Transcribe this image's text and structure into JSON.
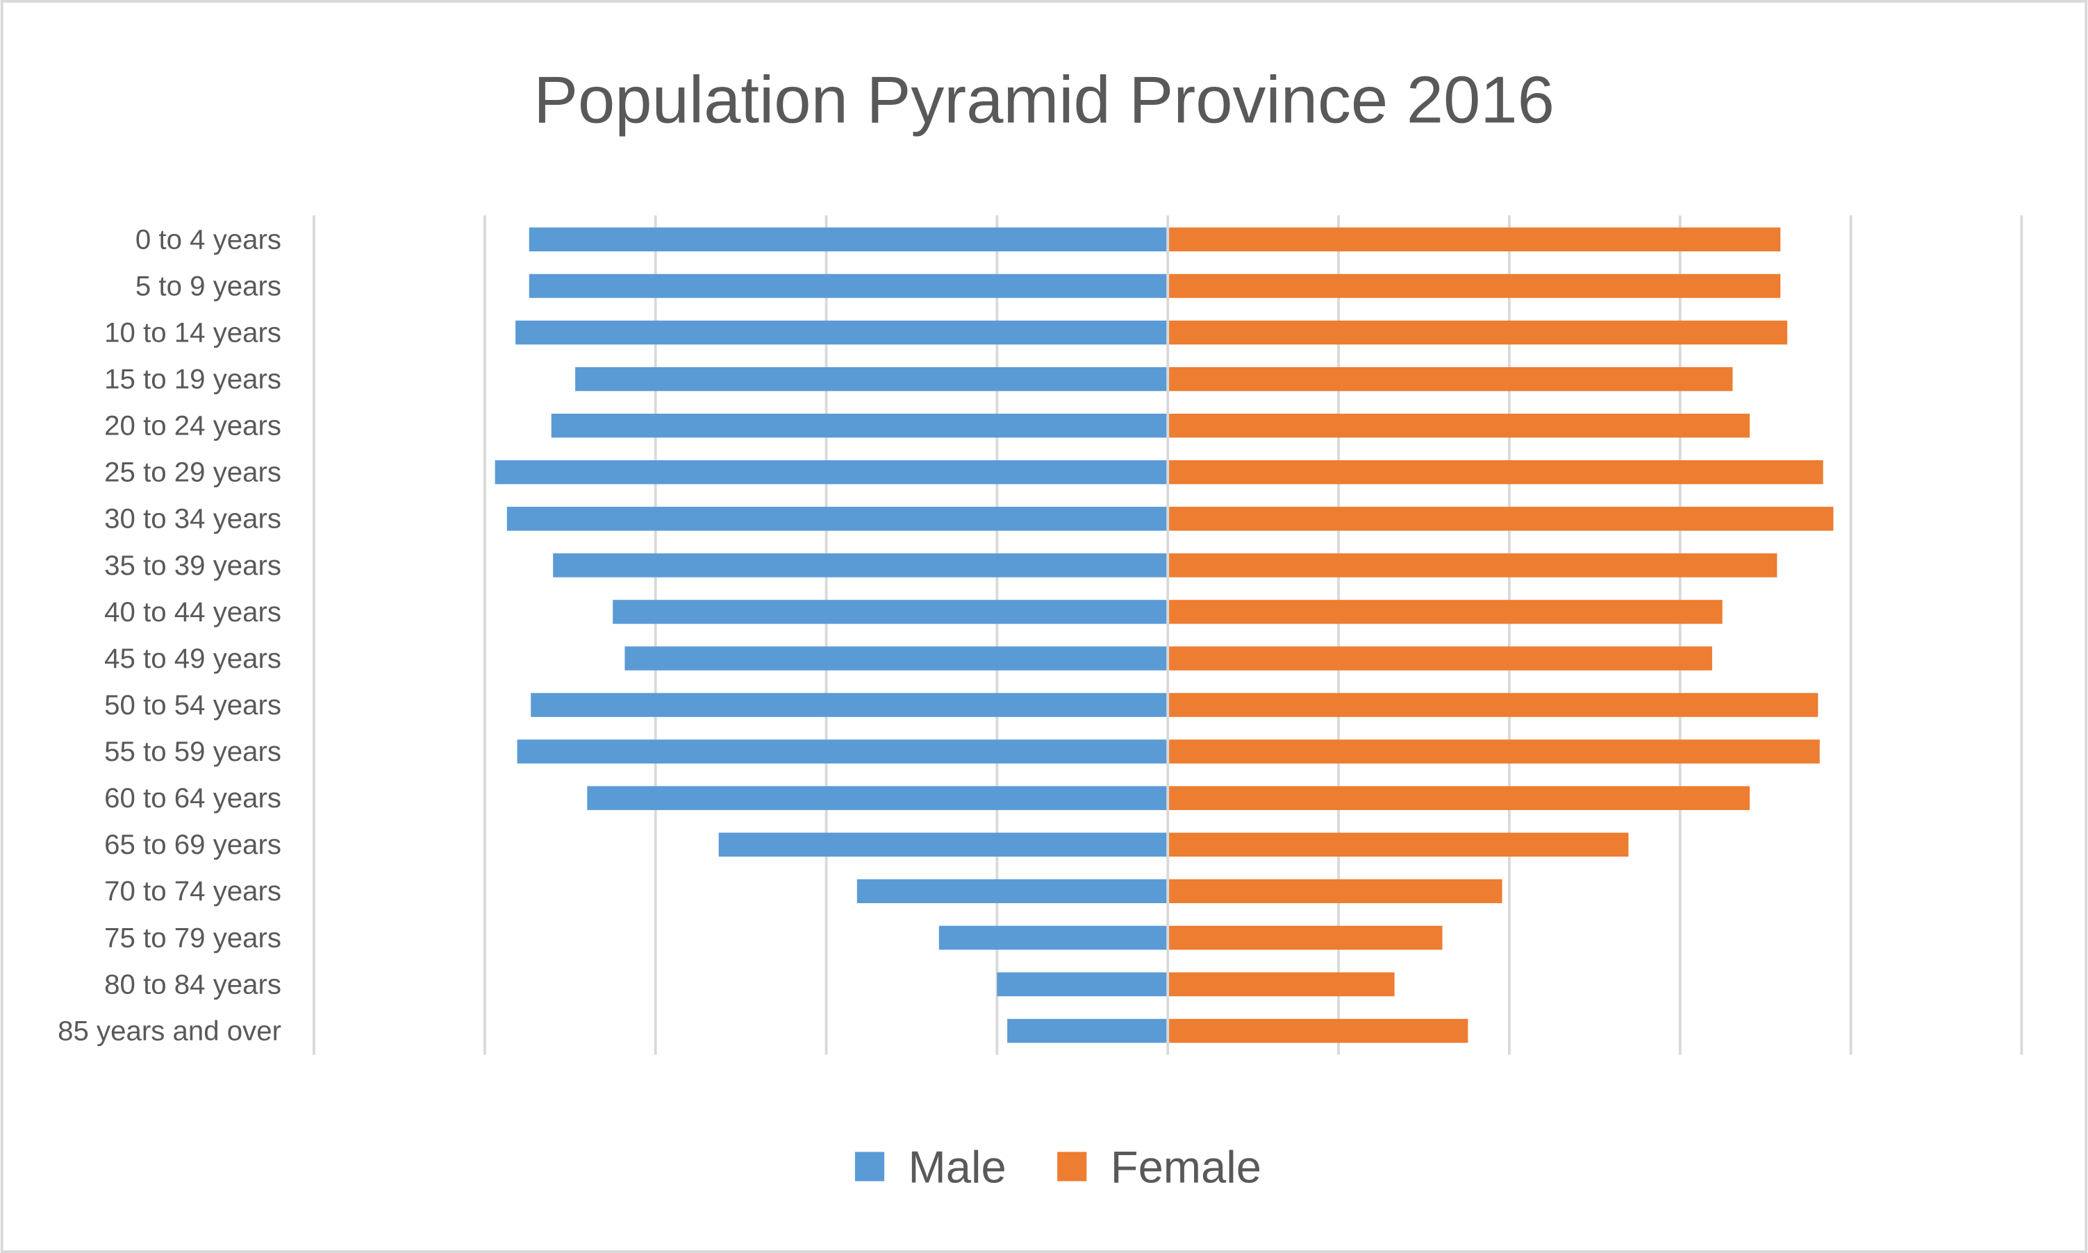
{
  "chart_data": {
    "type": "bar",
    "orientation": "horizontal",
    "title": "Population Pyramid Province 2016",
    "xlabel": "",
    "ylabel": "",
    "xlim": [
      -5,
      5
    ],
    "value_units": "relative (gridline step = 1; axis tick labels not shown)",
    "grid": true,
    "legend_position": "bottom",
    "categories": [
      "0 to 4 years",
      "5 to 9 years",
      "10 to 14 years",
      "15 to 19 years",
      "20 to 24 years",
      "25 to 29 years",
      "30 to 34 years",
      "35 to 39 years",
      "40 to 44 years",
      "45 to 49 years",
      "50 to 54 years",
      "55 to 59 years",
      "60 to 64 years",
      "65 to 69 years",
      "70 to 74 years",
      "75 to 79 years",
      "80 to 84 years",
      "85 years and over"
    ],
    "series": [
      {
        "name": "Male",
        "color": "#5b9bd5",
        "values": [
          -3.74,
          -3.74,
          -3.82,
          -3.47,
          -3.61,
          -3.94,
          -3.87,
          -3.6,
          -3.25,
          -3.18,
          -3.73,
          -3.81,
          -3.4,
          -2.63,
          -1.82,
          -1.34,
          -1.0,
          -0.94
        ]
      },
      {
        "name": "Female",
        "color": "#ed7d31",
        "values": [
          3.58,
          3.58,
          3.62,
          3.3,
          3.4,
          3.83,
          3.89,
          3.56,
          3.24,
          3.18,
          3.8,
          3.81,
          3.4,
          2.69,
          1.95,
          1.6,
          1.32,
          1.75
        ]
      }
    ]
  }
}
